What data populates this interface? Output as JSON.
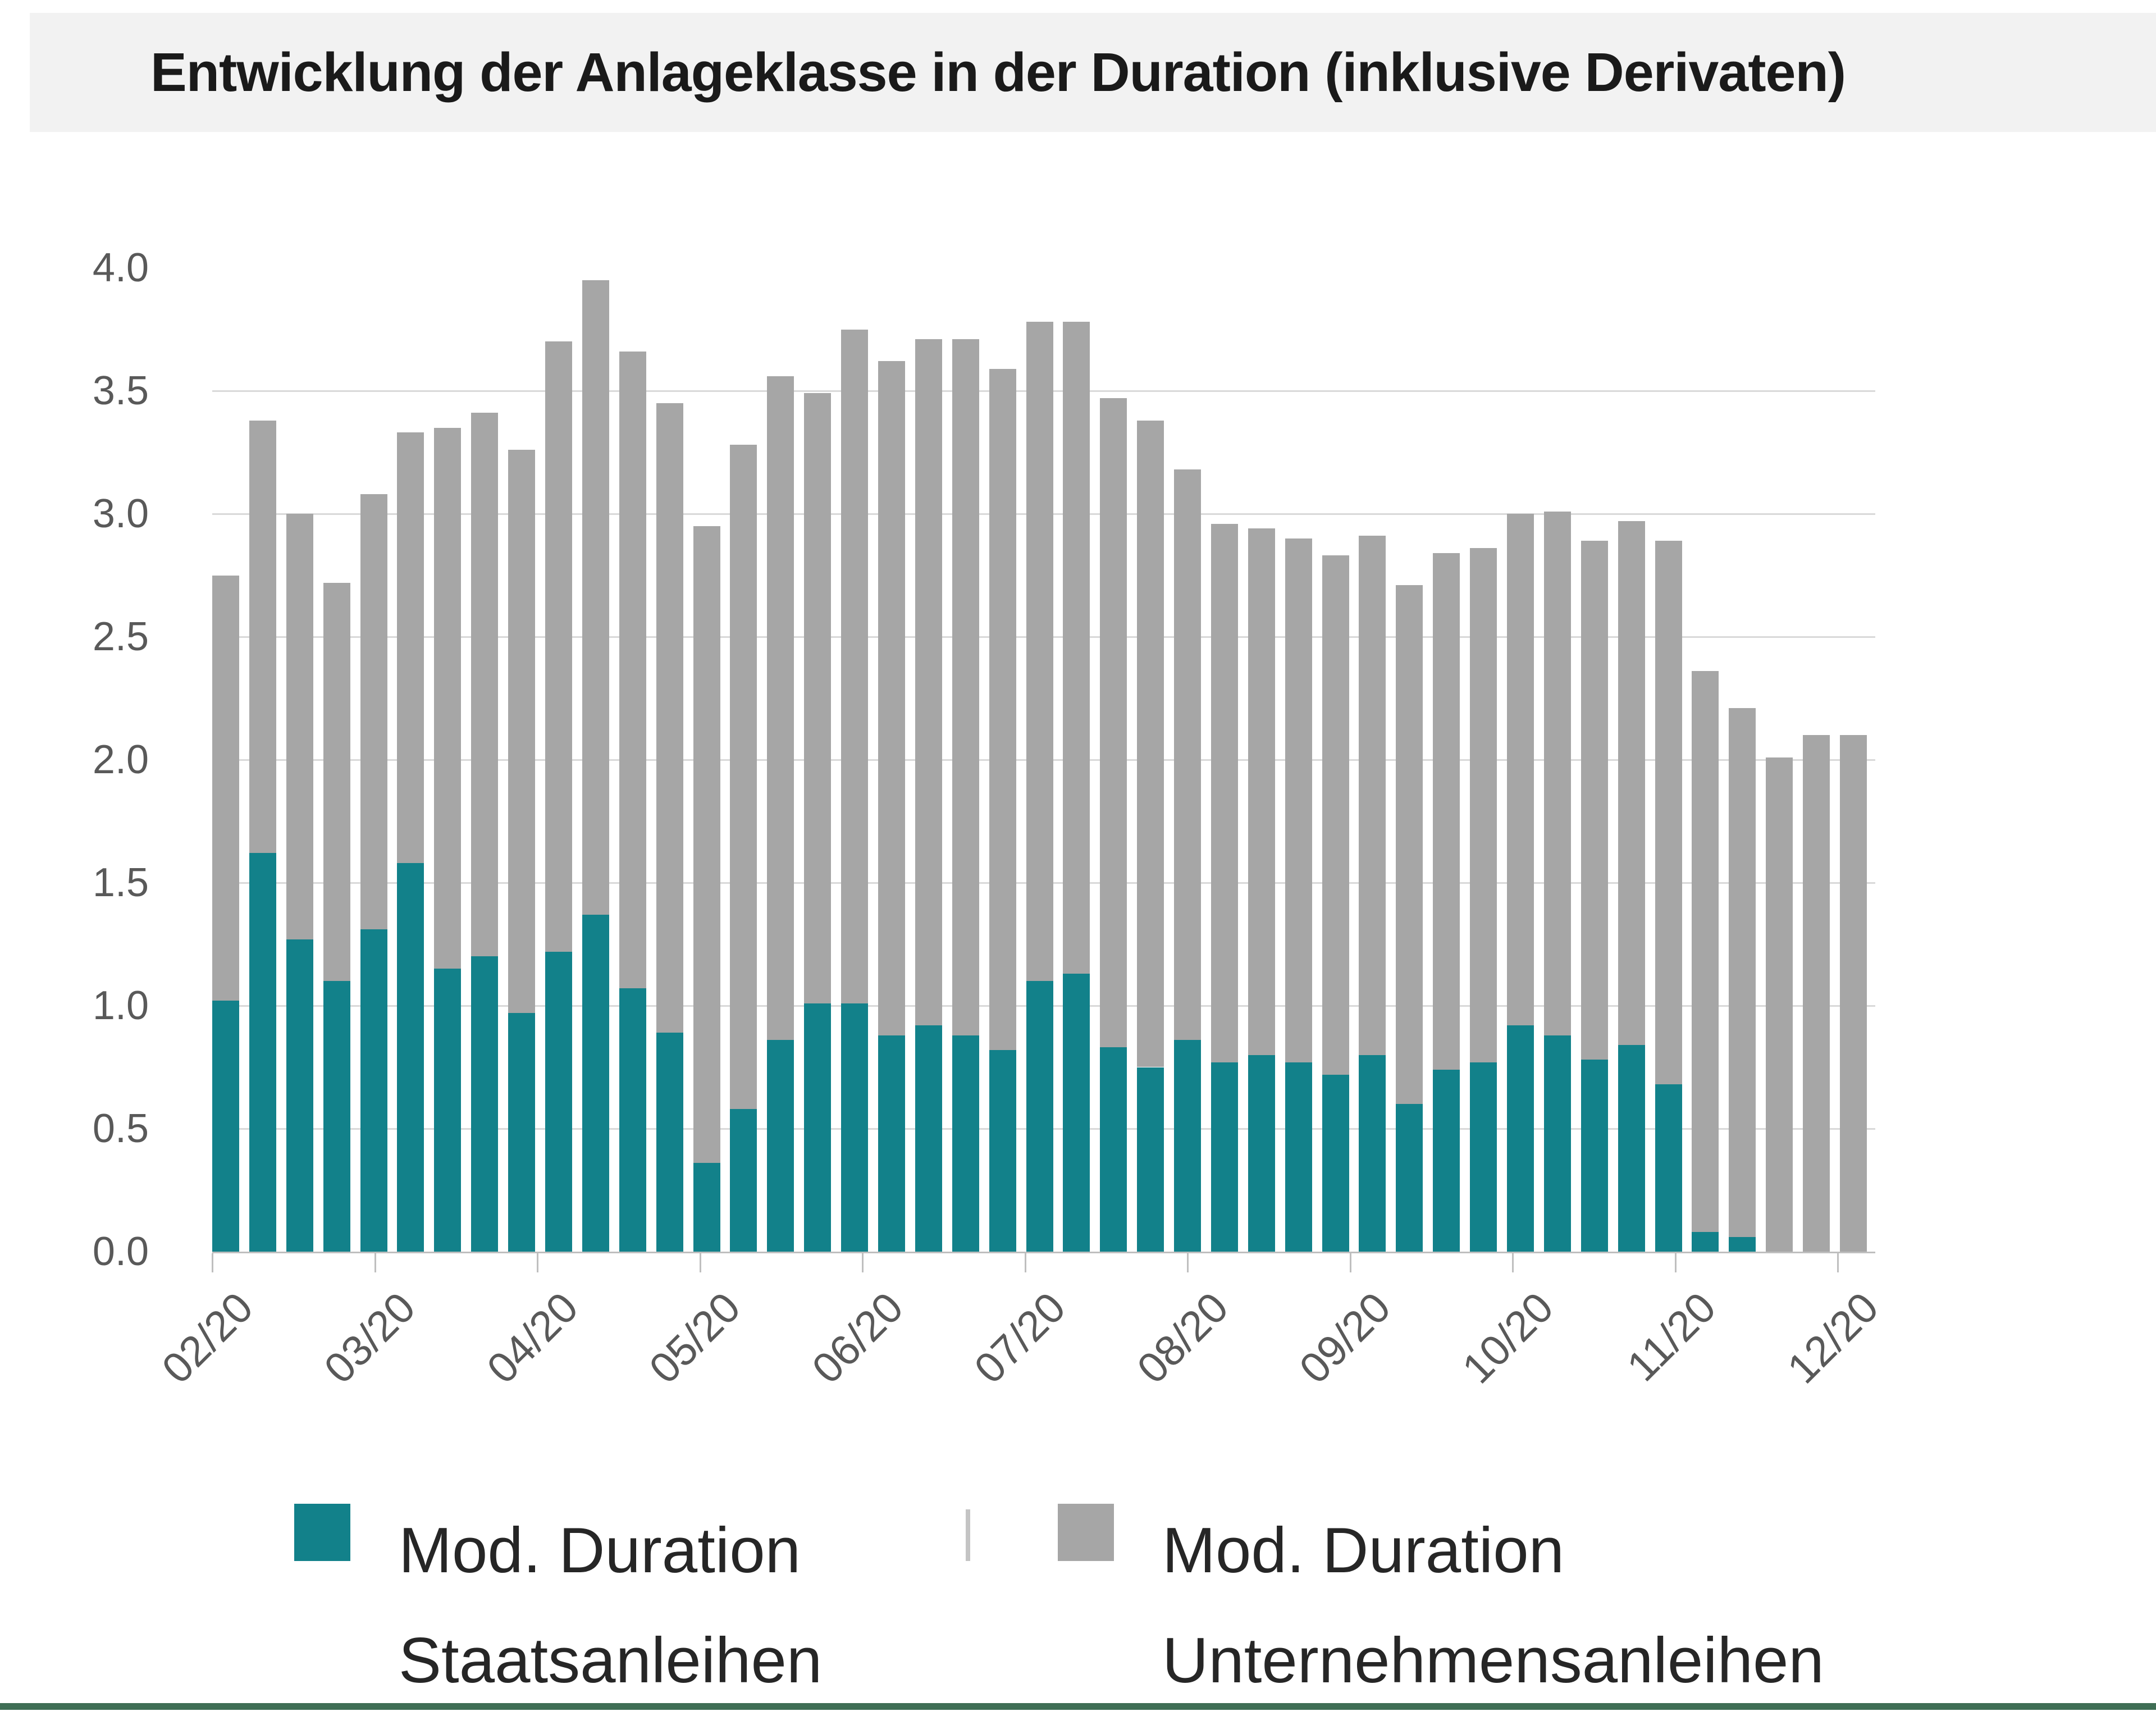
{
  "title": "Entwicklung der Anlageklasse in der Duration (inklusive Derivaten)",
  "colors": {
    "staatsanleihen_teal": "#12818A",
    "unternehmensanleihen_gray": "#A6A6A6",
    "gridline": "#D9D9D9",
    "axis_line": "#BFBFBF",
    "axis_label": "#595959",
    "title_band_background": "#F2F2F2",
    "footer_strip_green": "#3F6E55"
  },
  "y_axis": {
    "min": 0.0,
    "max": 4.0,
    "step": 0.5,
    "labels": [
      "0.0",
      "0.5",
      "1.0",
      "1.5",
      "2.0",
      "2.5",
      "3.0",
      "3.5",
      "4.0"
    ]
  },
  "x_axis": {
    "labels": [
      "02/20",
      "03/20",
      "04/20",
      "05/20",
      "06/20",
      "07/20",
      "08/20",
      "09/20",
      "10/20",
      "11/20",
      "12/20"
    ]
  },
  "legend": {
    "items": [
      {
        "label_line1": "Mod. Duration",
        "label_line2": "Staatsanleihen",
        "color": "#12818A"
      },
      {
        "label_line1": "Mod. Duration",
        "label_line2": "Unternehmensanleihen",
        "color": "#A6A6A6"
      }
    ]
  },
  "chart_data": {
    "type": "bar",
    "stacked": true,
    "title": "Entwicklung der Anlageklasse in der Duration (inklusive Derivaten)",
    "xlabel": "",
    "ylabel": "",
    "ylim": [
      0.0,
      4.0
    ],
    "y_tick_step": 0.5,
    "grid": true,
    "legend_position": "bottom",
    "x_tick_labels": [
      "02/20",
      "03/20",
      "04/20",
      "05/20",
      "06/20",
      "07/20",
      "08/20",
      "09/20",
      "10/20",
      "11/20",
      "12/20"
    ],
    "bars_per_month_note": "weekly bars, 45 total, x ticks at month starts",
    "series": [
      {
        "name": "Mod. Duration Staatsanleihen",
        "color": "#12818A",
        "values": [
          1.02,
          1.62,
          1.27,
          1.1,
          1.31,
          1.58,
          1.15,
          1.2,
          0.97,
          1.22,
          1.37,
          1.07,
          0.89,
          0.36,
          0.58,
          0.86,
          1.01,
          1.01,
          0.88,
          0.92,
          0.88,
          0.82,
          1.1,
          1.13,
          0.83,
          0.75,
          0.86,
          0.77,
          0.8,
          0.77,
          0.72,
          0.8,
          0.6,
          0.74,
          0.77,
          0.92,
          0.88,
          0.78,
          0.84,
          0.68,
          0.08,
          0.06,
          0.0,
          0.0,
          0.0
        ]
      },
      {
        "name": "Mod. Duration Unternehmensanleihen",
        "color": "#A6A6A6",
        "values": [
          1.73,
          1.76,
          1.73,
          1.62,
          1.77,
          1.75,
          2.2,
          2.21,
          2.29,
          2.48,
          2.58,
          2.59,
          2.56,
          2.59,
          2.7,
          2.7,
          2.48,
          2.74,
          2.74,
          2.79,
          2.83,
          2.77,
          2.68,
          2.65,
          2.64,
          2.63,
          2.32,
          2.19,
          2.14,
          2.13,
          2.11,
          2.11,
          2.11,
          2.1,
          2.09,
          2.08,
          2.13,
          2.11,
          2.13,
          2.21,
          2.28,
          2.15,
          2.01,
          2.1,
          2.1
        ]
      }
    ],
    "stacked_totals": [
      2.75,
      3.38,
      3.0,
      2.72,
      3.08,
      3.33,
      3.35,
      3.41,
      3.26,
      3.7,
      3.95,
      3.66,
      3.45,
      2.95,
      3.28,
      3.56,
      3.49,
      3.75,
      3.62,
      3.71,
      3.71,
      3.59,
      3.78,
      3.78,
      3.47,
      3.38,
      3.18,
      2.96,
      2.94,
      2.9,
      2.83,
      2.91,
      2.71,
      2.84,
      2.86,
      3.0,
      3.01,
      2.89,
      2.97,
      2.89,
      2.36,
      2.21,
      2.01,
      2.1,
      2.1
    ]
  }
}
